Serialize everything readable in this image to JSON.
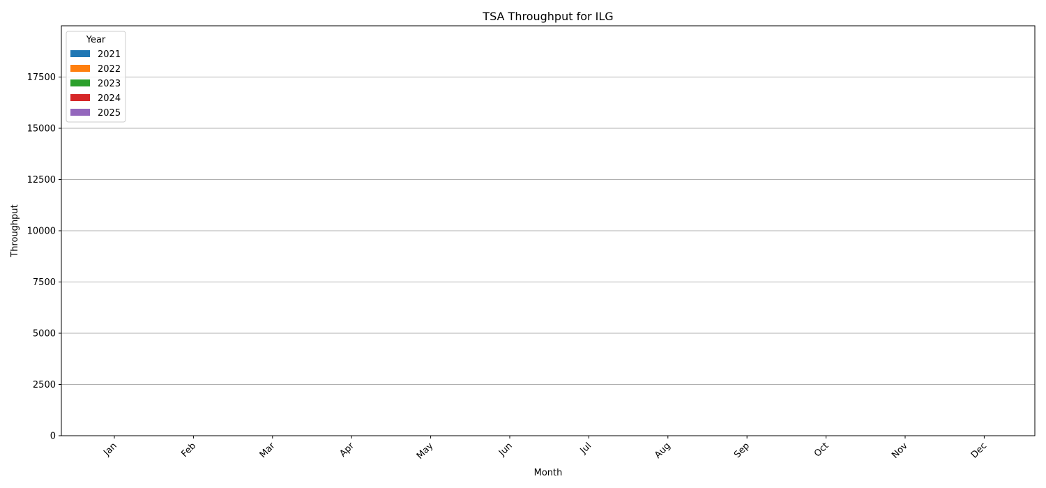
{
  "chart_data": {
    "type": "bar",
    "title": "TSA Throughput for ILG",
    "xlabel": "Month",
    "ylabel": "Throughput",
    "categories": [
      "Jan",
      "Feb",
      "Mar",
      "Apr",
      "May",
      "Jun",
      "Jul",
      "Aug",
      "Sep",
      "Oct",
      "Nov",
      "Dec"
    ],
    "ylim": [
      0,
      20000
    ],
    "yticks": [
      "0",
      "2500",
      "5000",
      "7500",
      "10000",
      "12500",
      "15000",
      "17500"
    ],
    "grid": "y",
    "legend": {
      "title": "Year",
      "placement": "top-left"
    },
    "series": [
      {
        "name": "2021",
        "color": "#1f77b4",
        "values": [
          0,
          0,
          0,
          0,
          0,
          0,
          0,
          0,
          0,
          0,
          0,
          0
        ]
      },
      {
        "name": "2022",
        "color": "#ff7f0e",
        "values": [
          0,
          0,
          0,
          0,
          0,
          0,
          0,
          0,
          0,
          0,
          0,
          0
        ]
      },
      {
        "name": "2023",
        "color": "#2ca02c",
        "values": [
          0,
          0,
          0,
          0,
          0,
          0,
          0,
          0,
          0,
          0,
          0,
          0
        ]
      },
      {
        "name": "2024",
        "color": "#d62728",
        "values": [
          0,
          0,
          0,
          0,
          0,
          0,
          0,
          0,
          0,
          0,
          0,
          0
        ]
      },
      {
        "name": "2025",
        "color": "#9467bd",
        "values": [
          0,
          0,
          0,
          0,
          0,
          0,
          0,
          0,
          0,
          0,
          0,
          0
        ]
      }
    ]
  }
}
